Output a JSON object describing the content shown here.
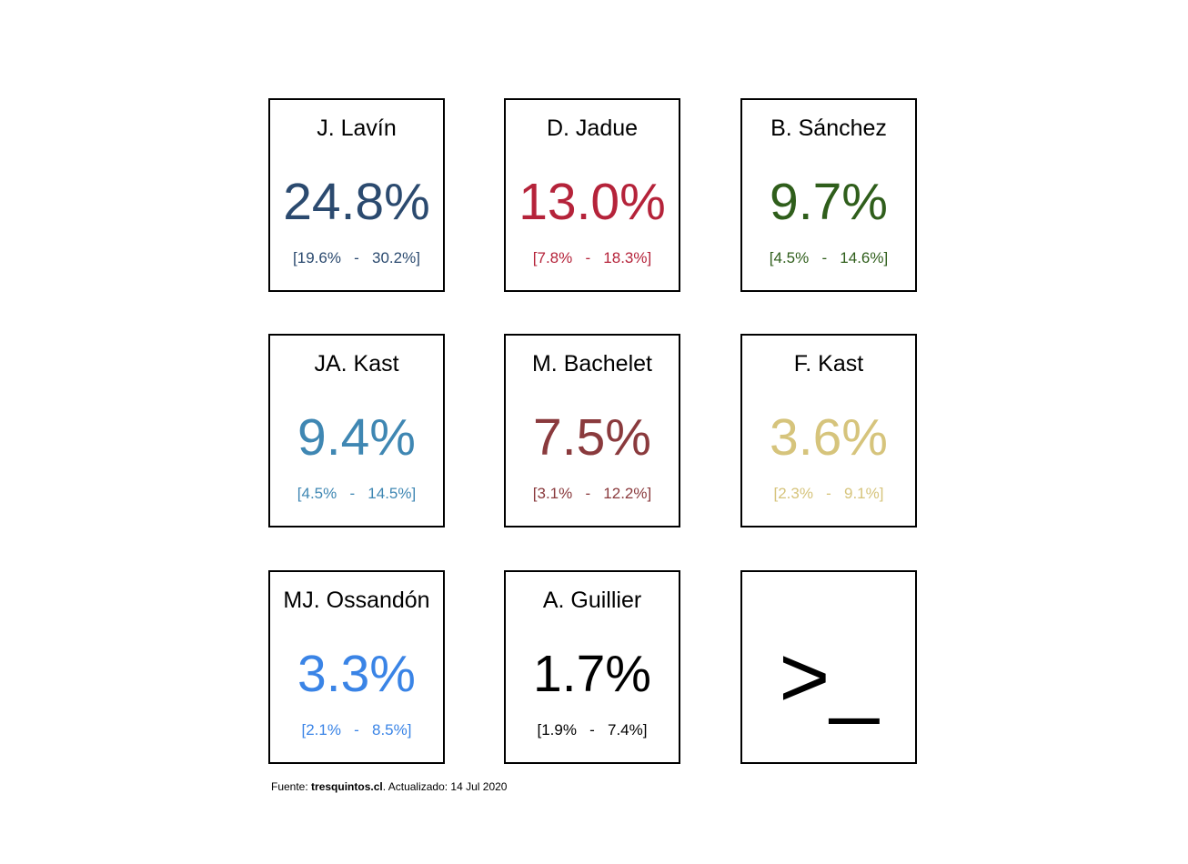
{
  "cards": [
    {
      "name": "J. Lavín",
      "value": "24.8%",
      "range_low": "[19.6%",
      "range_high": "30.2%]",
      "color": "#2b4a6f"
    },
    {
      "name": "D. Jadue",
      "value": "13.0%",
      "range_low": "[7.8%",
      "range_high": "18.3%]",
      "color": "#b5233a"
    },
    {
      "name": "B. Sánchez",
      "value": "9.7%",
      "range_low": "[4.5%",
      "range_high": "14.6%]",
      "color": "#2f5e1b"
    },
    {
      "name": "JA. Kast",
      "value": "9.4%",
      "range_low": "[4.5%",
      "range_high": "14.5%]",
      "color": "#3f87b3"
    },
    {
      "name": "M. Bachelet",
      "value": "7.5%",
      "range_low": "[3.1%",
      "range_high": "12.2%]",
      "color": "#8a3a3d"
    },
    {
      "name": "F. Kast",
      "value": "3.6%",
      "range_low": "[2.3%",
      "range_high": "9.1%]",
      "color": "#d6c47c"
    },
    {
      "name": "MJ. Ossandón",
      "value": "3.3%",
      "range_low": "[2.1%",
      "range_high": "8.5%]",
      "color": "#3a84e6"
    },
    {
      "name": "A. Guillier",
      "value": "1.7%",
      "range_low": "[1.9%",
      "range_high": "7.4%]",
      "color": "#000000"
    }
  ],
  "range_separator": "-",
  "prompt_card": {
    "symbol": ">_"
  },
  "footer": {
    "prefix": "Fuente: ",
    "source_name": "tresquintos.cl",
    "suffix": ". Actualizado: 14 Jul 2020"
  }
}
